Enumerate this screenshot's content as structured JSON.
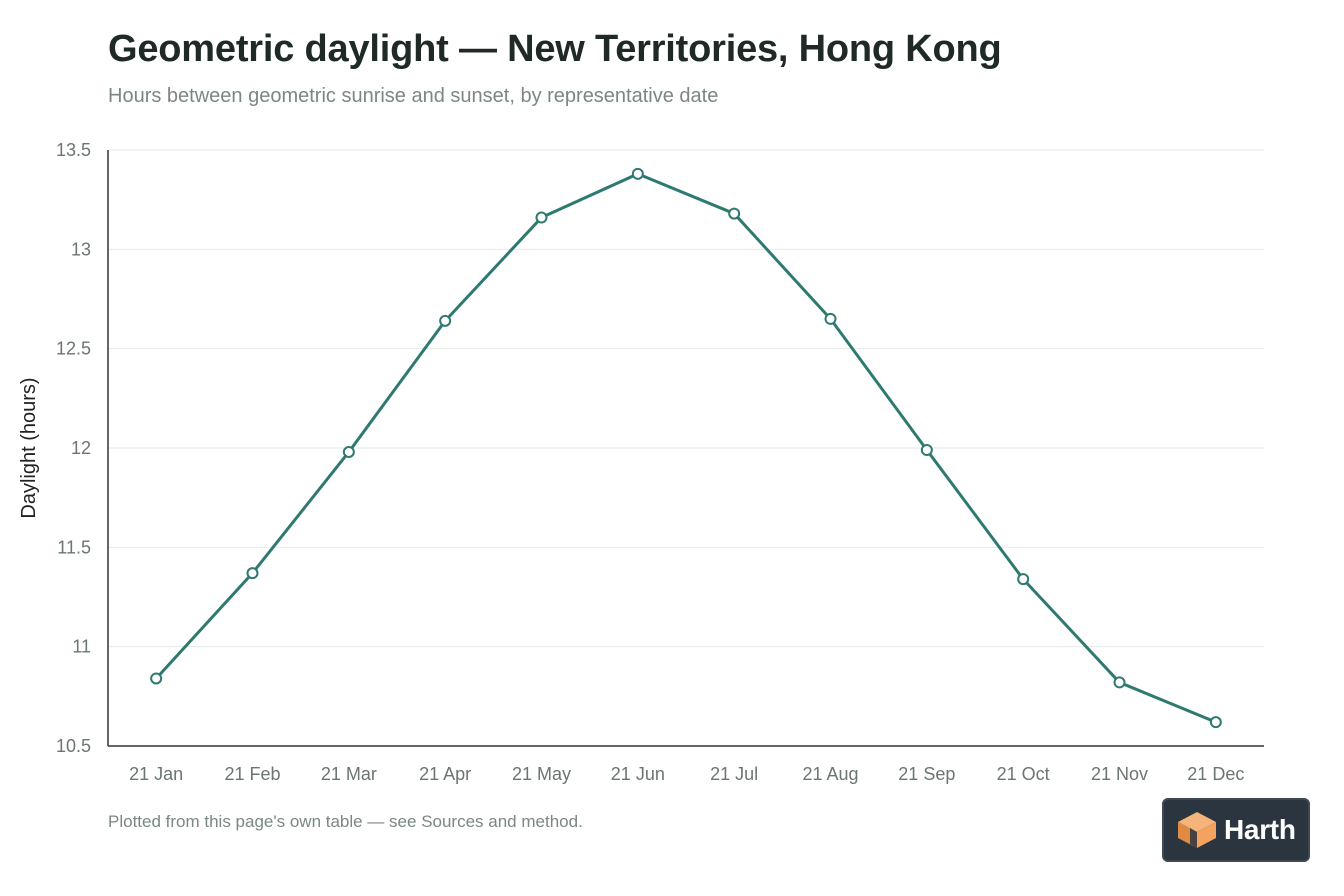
{
  "title": "Geometric daylight — New Territories, Hong Kong",
  "subtitle": "Hours between geometric sunrise and sunset, by representative date",
  "footnote": "Plotted from this page's own table — see Sources and method.",
  "logo": {
    "text": "Harth",
    "colors": {
      "background": "#2b3540",
      "mark_light": "#f6b47a",
      "mark_dark": "#e08a44"
    }
  },
  "chart_data": {
    "type": "line",
    "categories": [
      "21 Jan",
      "21 Feb",
      "21 Mar",
      "21 Apr",
      "21 May",
      "21 Jun",
      "21 Jul",
      "21 Aug",
      "21 Sep",
      "21 Oct",
      "21 Nov",
      "21 Dec"
    ],
    "series": [
      {
        "values": [
          10.84,
          11.37,
          11.98,
          12.64,
          13.16,
          13.38,
          13.18,
          12.65,
          11.99,
          11.34,
          10.82,
          10.62
        ]
      }
    ],
    "ylabel": "Daylight (hours)",
    "xlabel": "",
    "ylim": [
      10.5,
      13.5
    ],
    "yticks": [
      "10.5",
      "11",
      "11.5",
      "12",
      "12.5",
      "13",
      "13.5"
    ],
    "grid": true,
    "colors": {
      "line": "#2e7a70",
      "grid": "#e6e9e8",
      "axis": "#333333",
      "tick_text": "#6b7572"
    }
  }
}
